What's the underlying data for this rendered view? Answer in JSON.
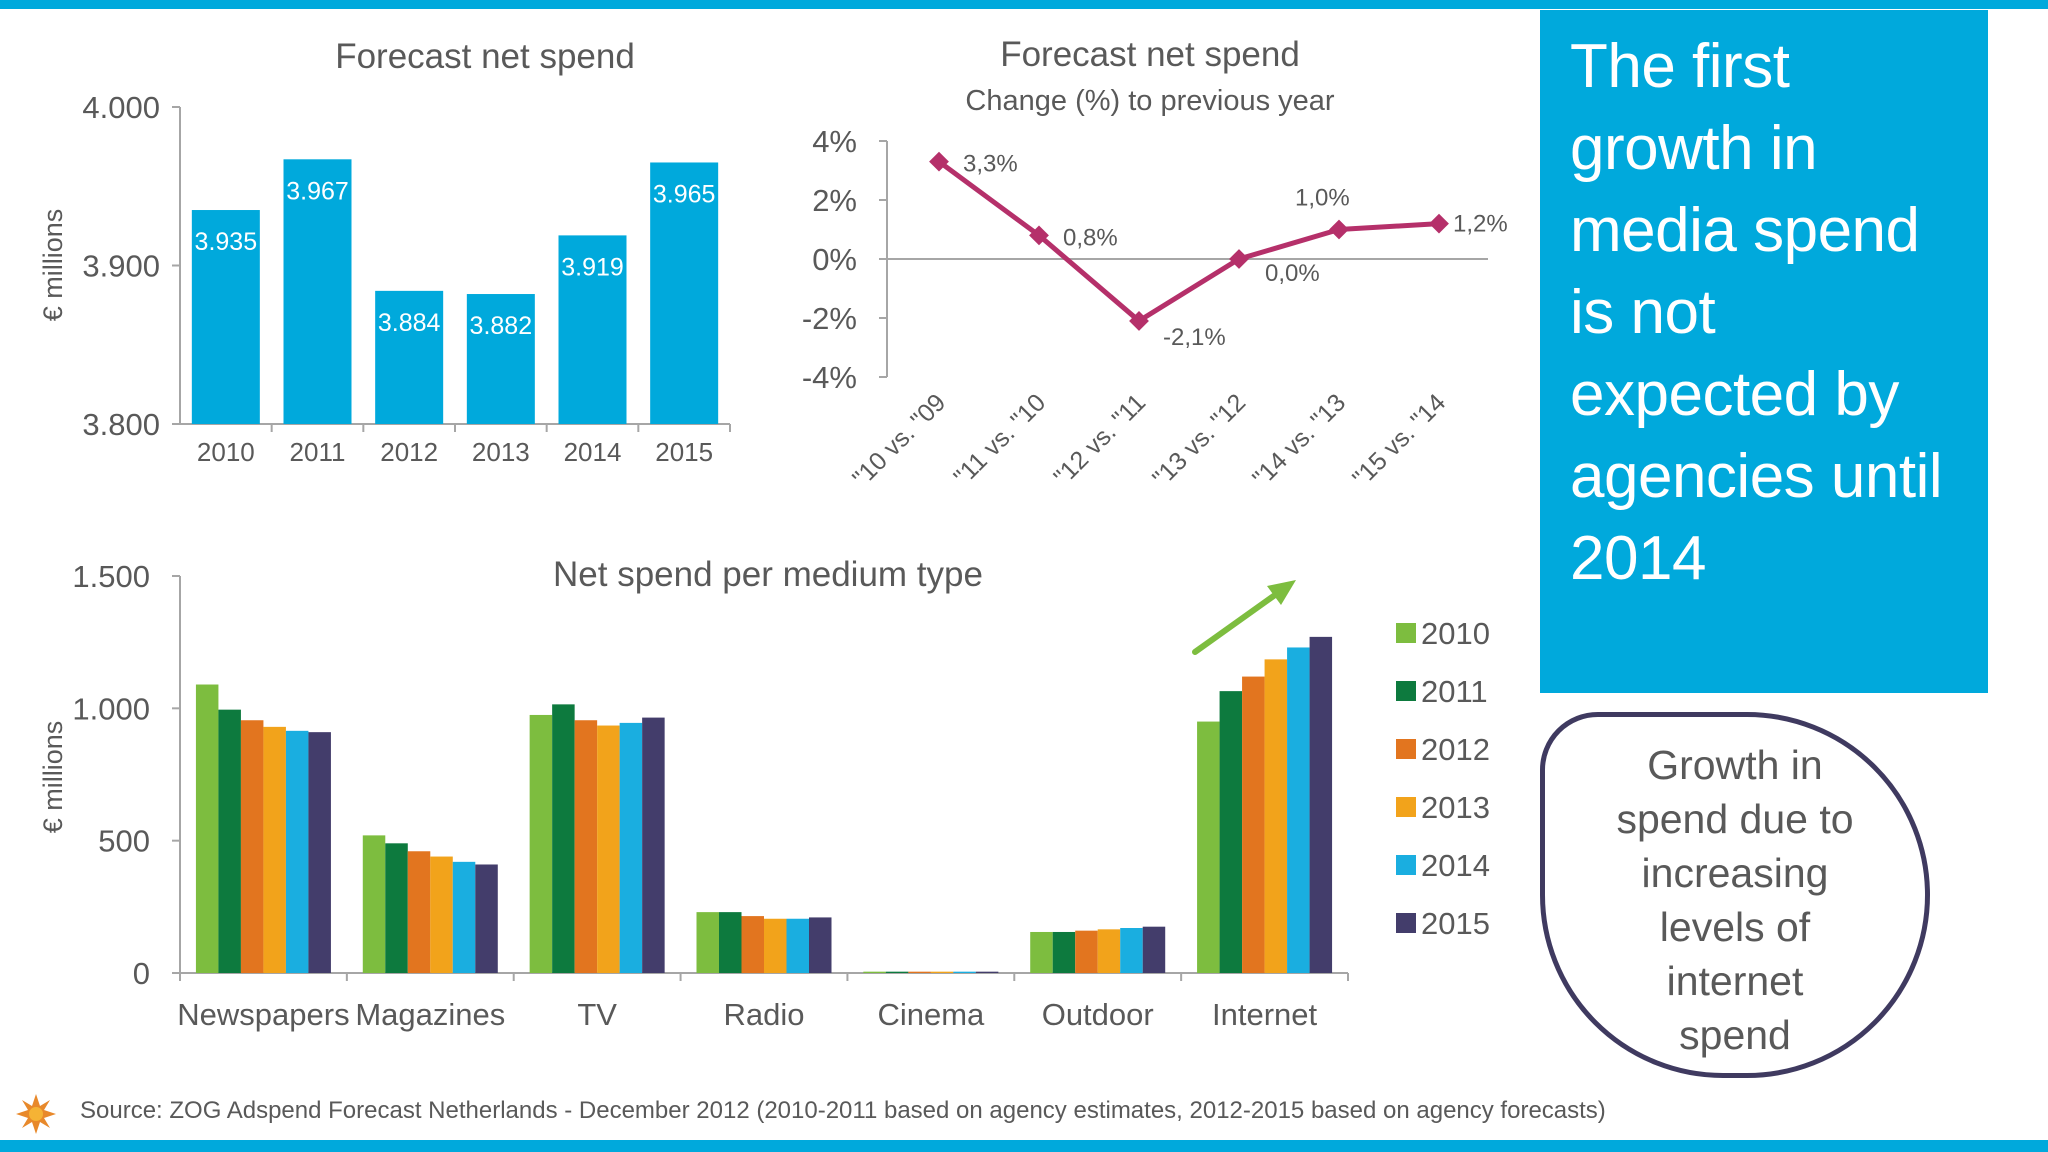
{
  "callout": {
    "text": "The first growth in media spend is not expected by agencies until 2014"
  },
  "bubble": {
    "text": "Growth in spend due to increasing levels of internet spend"
  },
  "source": "Source: ZOG Adspend Forecast Netherlands - December 2012 (2010-2011 based on agency estimates, 2012-2015 based on agency forecasts)",
  "colors": {
    "accent": "#00a9dc",
    "line": "#b5306a",
    "arrow": "#7dbd3f",
    "bubble_border": "#3f3a60"
  },
  "chart_data": [
    {
      "type": "bar",
      "title": "Forecast net spend",
      "ylabel": "€ millions",
      "xlabel": "",
      "ylim": [
        3800,
        4000
      ],
      "yticks": [
        3800,
        3900,
        4000
      ],
      "ytick_labels": [
        "3.800",
        "3.900",
        "4.000"
      ],
      "categories": [
        "2010",
        "2011",
        "2012",
        "2013",
        "2014",
        "2015"
      ],
      "values": [
        3935,
        3967,
        3884,
        3882,
        3919,
        3965
      ],
      "value_labels": [
        "3.935",
        "3.967",
        "3.884",
        "3.882",
        "3.919",
        "3.965"
      ],
      "color": "#00a9dc",
      "grid": false
    },
    {
      "type": "line",
      "title": "Forecast net spend",
      "subtitle": "Change (%) to previous year",
      "xlabel": "",
      "ylabel": "",
      "ylim": [
        -4,
        4
      ],
      "yticks": [
        -4,
        -2,
        0,
        2,
        4
      ],
      "ytick_labels": [
        "-4%",
        "-2%",
        "0%",
        "2%",
        "4%"
      ],
      "categories": [
        "\"10 vs. \"09",
        "\"11 vs. \"10",
        "\"12 vs. \"11",
        "\"13 vs. \"12",
        "\"14 vs. \"13",
        "\"15 vs. \"14"
      ],
      "values": [
        3.3,
        0.8,
        -2.1,
        0.0,
        1.0,
        1.2
      ],
      "value_labels": [
        "3,3%",
        "0,8%",
        "-2,1%",
        "0,0%",
        "1,0%",
        "1,2%"
      ],
      "color": "#b5306a",
      "grid": false
    },
    {
      "type": "bar",
      "title": "Net spend per medium type",
      "ylabel": "€ millions",
      "xlabel": "",
      "ylim": [
        0,
        1500
      ],
      "yticks": [
        0,
        500,
        1000,
        1500
      ],
      "ytick_labels": [
        "0",
        "500",
        "1.000",
        "1.500"
      ],
      "categories": [
        "Newspapers",
        "Magazines",
        "TV",
        "Radio",
        "Cinema",
        "Outdoor",
        "Internet"
      ],
      "series": [
        {
          "name": "2010",
          "color": "#7dbd3f",
          "values": [
            1090,
            520,
            975,
            230,
            5,
            155,
            950
          ]
        },
        {
          "name": "2011",
          "color": "#0d7a3e",
          "values": [
            995,
            490,
            1015,
            230,
            5,
            155,
            1065
          ]
        },
        {
          "name": "2012",
          "color": "#e2751f",
          "values": [
            955,
            460,
            955,
            215,
            5,
            160,
            1120
          ]
        },
        {
          "name": "2013",
          "color": "#f2a31b",
          "values": [
            930,
            440,
            935,
            205,
            5,
            165,
            1185
          ]
        },
        {
          "name": "2014",
          "color": "#1aaee0",
          "values": [
            915,
            420,
            945,
            205,
            5,
            170,
            1230
          ]
        },
        {
          "name": "2015",
          "color": "#433d6b",
          "values": [
            910,
            410,
            965,
            210,
            5,
            175,
            1270
          ]
        }
      ],
      "legend": "right",
      "grid": false
    }
  ]
}
